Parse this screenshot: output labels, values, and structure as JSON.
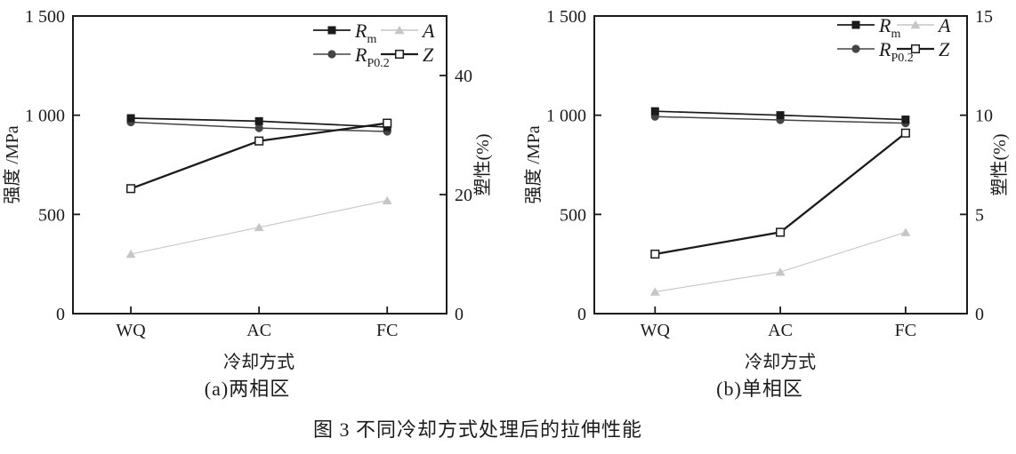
{
  "figure": {
    "caption": "图 3 不同冷却方式处理后的拉伸性能"
  },
  "colors": {
    "axis": "#1b1b1b",
    "text": "#1b1b1b",
    "series_rm": "#1b1b1b",
    "series_rp02": "#454545",
    "series_a": "#c6c6c6",
    "series_z": "#1b1b1b",
    "background": "#ffffff"
  },
  "chart_data": [
    {
      "type": "line",
      "subtitle": "(a)两相区",
      "xlabel": "冷却方式",
      "ylabel_left": "强度 /MPa",
      "ylabel_right": "塑性(%)",
      "categories": [
        "WQ",
        "AC",
        "FC"
      ],
      "left_axis": {
        "min": 0,
        "max": 1500,
        "ticks": [
          0,
          500,
          1000,
          1500
        ],
        "tick_labels": [
          "0",
          "500",
          "1 000",
          "1 500"
        ]
      },
      "right_axis": {
        "min": 0,
        "max": 50,
        "ticks": [
          0,
          20,
          40
        ],
        "tick_labels": [
          "0",
          "20",
          "40"
        ]
      },
      "legend_rows": [
        [
          "Rm",
          "A"
        ],
        [
          "RP0.2",
          "Z"
        ]
      ],
      "series": [
        {
          "name": "A",
          "label_main": "A",
          "label_sub": "",
          "axis": "right",
          "values": [
            10,
            14.5,
            19
          ],
          "color": "#c6c6c6",
          "marker": "triangle",
          "line_width": 1.1
        },
        {
          "name": "RP0.2",
          "label_main": "R",
          "label_sub": "P0.2",
          "axis": "left",
          "values": [
            965,
            935,
            918
          ],
          "color": "#454545",
          "marker": "circle",
          "line_width": 1.5
        },
        {
          "name": "Rm",
          "label_main": "R",
          "label_sub": "m",
          "axis": "left",
          "values": [
            985,
            970,
            940
          ],
          "color": "#1b1b1b",
          "marker": "square",
          "line_width": 1.7
        },
        {
          "name": "Z",
          "label_main": "Z",
          "label_sub": "",
          "axis": "right",
          "values": [
            21,
            29,
            32
          ],
          "color": "#1b1b1b",
          "marker": "square-open",
          "line_width": 2.3
        }
      ]
    },
    {
      "type": "line",
      "subtitle": "(b)单相区",
      "xlabel": "冷却方式",
      "ylabel_left": "强度 /MPa",
      "ylabel_right": "塑性(%)",
      "categories": [
        "WQ",
        "AC",
        "FC"
      ],
      "left_axis": {
        "min": 0,
        "max": 1500,
        "ticks": [
          0,
          500,
          1000,
          1500
        ],
        "tick_labels": [
          "0",
          "500",
          "1 000",
          "1 500"
        ]
      },
      "right_axis": {
        "min": 0,
        "max": 15,
        "ticks": [
          0,
          5,
          10,
          15
        ],
        "tick_labels": [
          "0",
          "5",
          "10",
          "15"
        ]
      },
      "legend_rows": [
        [
          "Rm",
          "A"
        ],
        [
          "RP0.2",
          "Z"
        ]
      ],
      "series": [
        {
          "name": "A",
          "label_main": "A",
          "label_sub": "",
          "axis": "right",
          "values": [
            1.1,
            2.1,
            4.1
          ],
          "color": "#c6c6c6",
          "marker": "triangle",
          "line_width": 1.1
        },
        {
          "name": "RP0.2",
          "label_main": "R",
          "label_sub": "P0.2",
          "axis": "left",
          "values": [
            993,
            976,
            960
          ],
          "color": "#454545",
          "marker": "circle",
          "line_width": 1.5
        },
        {
          "name": "Rm",
          "label_main": "R",
          "label_sub": "m",
          "axis": "left",
          "values": [
            1020,
            1000,
            978
          ],
          "color": "#1b1b1b",
          "marker": "square",
          "line_width": 1.7
        },
        {
          "name": "Z",
          "label_main": "Z",
          "label_sub": "",
          "axis": "right",
          "values": [
            3.0,
            4.1,
            9.1
          ],
          "color": "#1b1b1b",
          "marker": "square-open",
          "line_width": 2.3
        }
      ]
    }
  ]
}
